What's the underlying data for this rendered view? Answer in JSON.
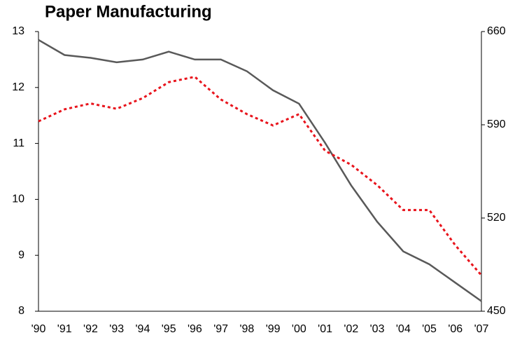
{
  "chart_data": {
    "type": "line",
    "title": "Paper Manufacturing",
    "categories": [
      "'90",
      "'91",
      "'92",
      "'93",
      "'94",
      "'95",
      "'96",
      "'97",
      "'98",
      "'99",
      "'00",
      "'01",
      "'02",
      "'03",
      "'04",
      "'05",
      "'06",
      "'07"
    ],
    "series": [
      {
        "color": "#595959",
        "style": "solid",
        "axis": "y",
        "values": [
          12.85,
          12.58,
          12.53,
          12.45,
          12.5,
          12.64,
          12.5,
          12.5,
          12.29,
          11.95,
          11.71,
          11.01,
          10.25,
          9.6,
          9.07,
          8.84,
          8.51,
          8.18
        ]
      },
      {
        "color": "#e8141c",
        "style": "dotted",
        "axis": "y2",
        "values": [
          592.6,
          601.6,
          606,
          602,
          610,
          622,
          626,
          609,
          598,
          589.5,
          598,
          570.5,
          560,
          544.7,
          526,
          526,
          499.5,
          477
        ]
      }
    ],
    "ylim": [
      8,
      13
    ],
    "yticks": [
      8,
      9,
      10,
      11,
      12,
      13
    ],
    "y2lim": [
      450,
      660
    ],
    "y2ticks": [
      450,
      520,
      590,
      660
    ]
  }
}
